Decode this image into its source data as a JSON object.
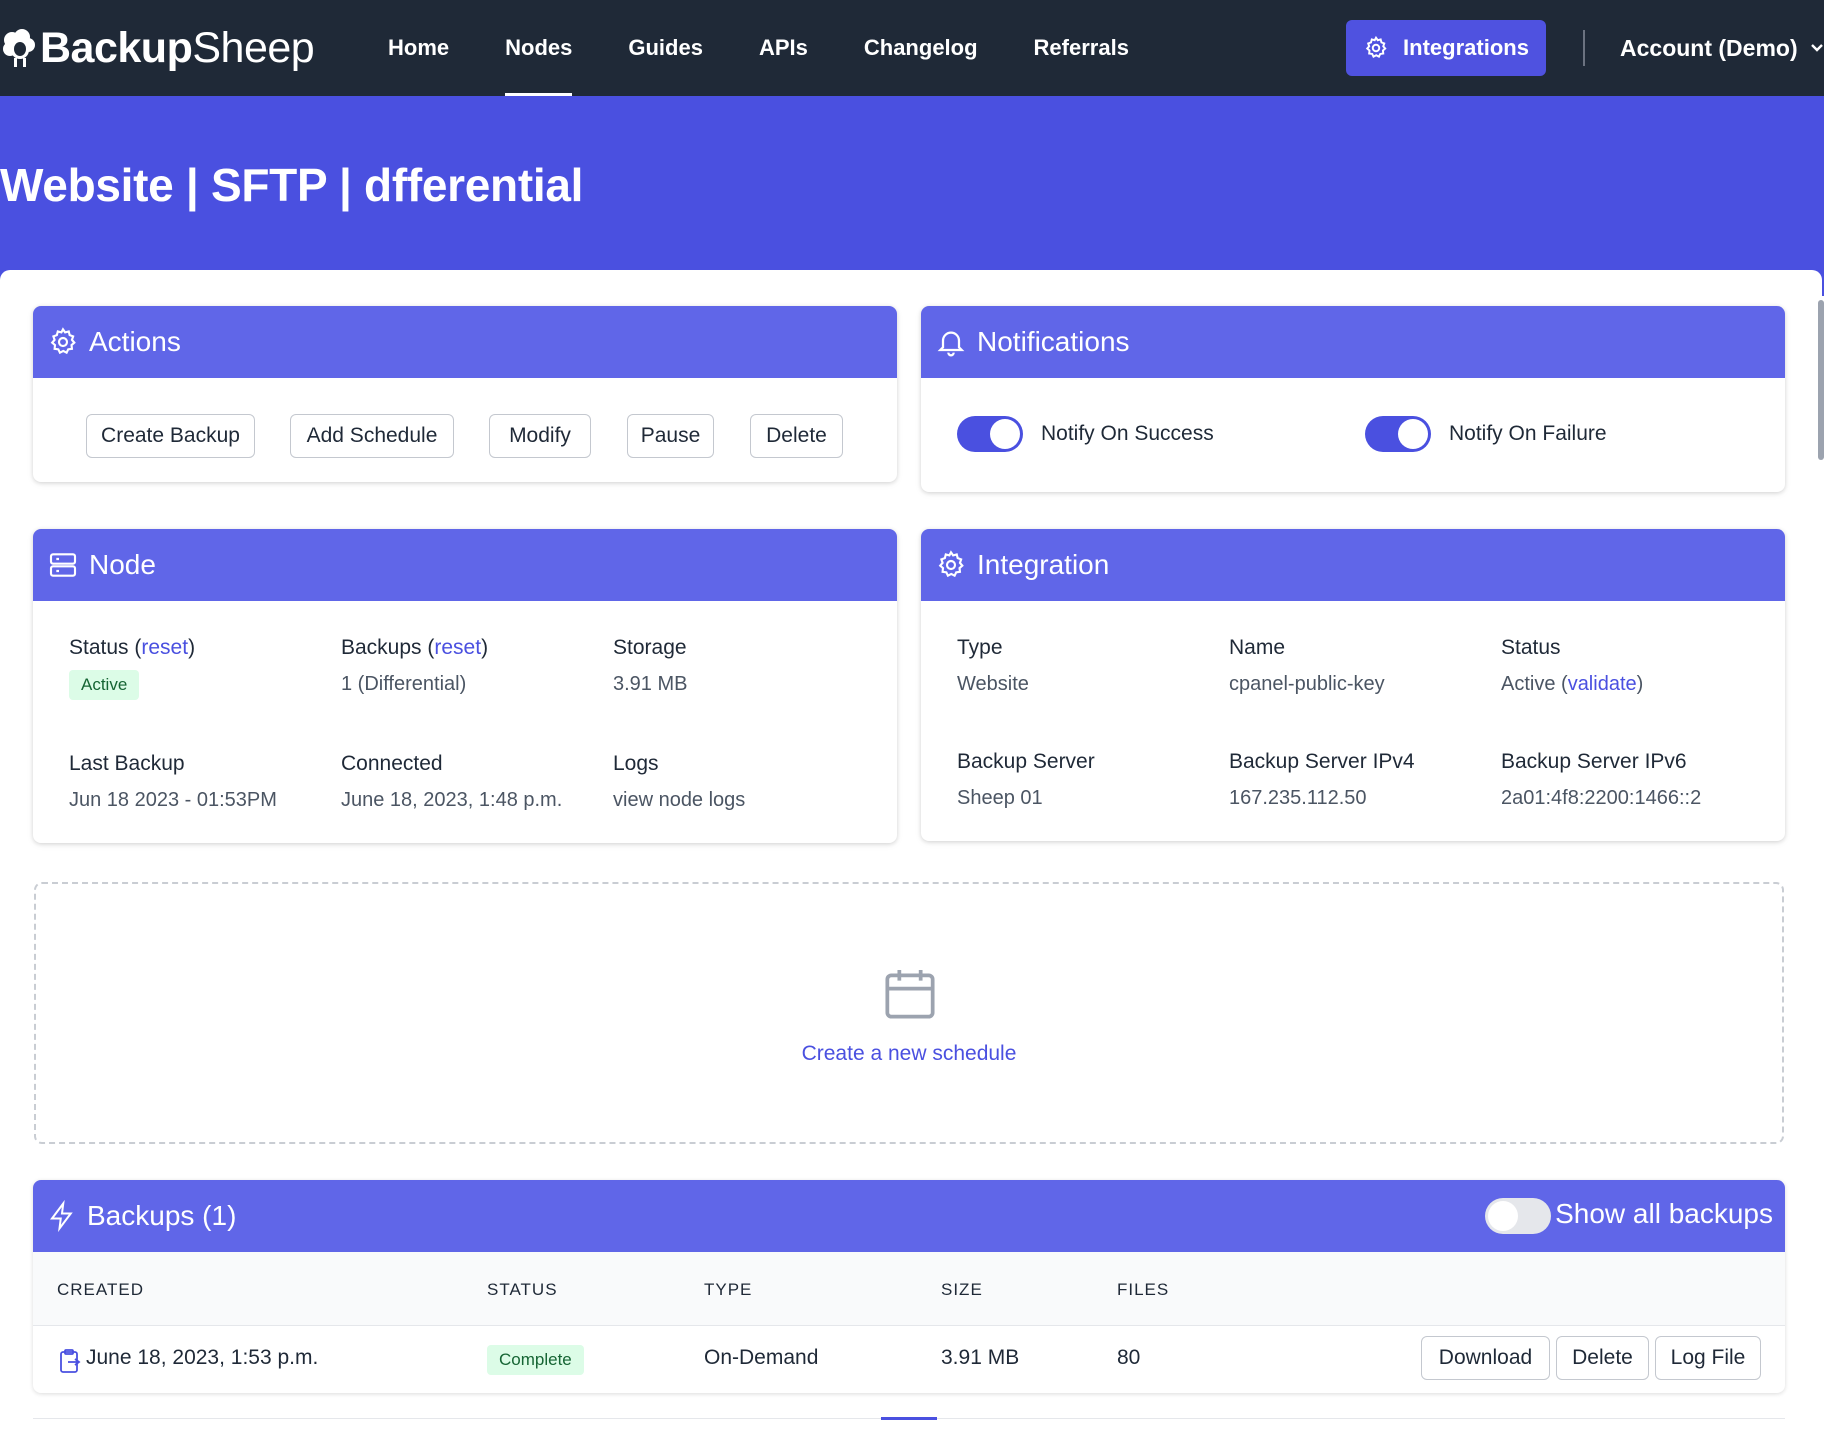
{
  "app": {
    "logo_bold": "Backup",
    "logo_light": "Sheep"
  },
  "nav": {
    "links": [
      "Home",
      "Nodes",
      "Guides",
      "APIs",
      "Changelog",
      "Referrals"
    ],
    "active": "Nodes",
    "integrations_label": "Integrations",
    "account_label": "Account (Demo)"
  },
  "page": {
    "title": "Website | SFTP | dfferential"
  },
  "actions": {
    "title": "Actions",
    "buttons": [
      "Create Backup",
      "Add Schedule",
      "Modify",
      "Pause",
      "Delete"
    ]
  },
  "notifications": {
    "title": "Notifications",
    "success_label": "Notify On Success",
    "success_on": true,
    "failure_label": "Notify On Failure",
    "failure_on": true
  },
  "node": {
    "title": "Node",
    "status_label": "Status",
    "status_reset": "reset",
    "status_value": "Active",
    "backups_label": "Backups",
    "backups_reset": "reset",
    "backups_value": "1 (Differential)",
    "storage_label": "Storage",
    "storage_value": "3.91 MB",
    "last_backup_label": "Last Backup",
    "last_backup_value": "Jun 18 2023 - 01:53PM",
    "connected_label": "Connected",
    "connected_value": "June 18, 2023, 1:48 p.m.",
    "logs_label": "Logs",
    "logs_link": "view node logs"
  },
  "integration": {
    "title": "Integration",
    "type_label": "Type",
    "type_value": "Website",
    "name_label": "Name",
    "name_value": "cpanel-public-key",
    "status_label": "Status",
    "status_value": "Active",
    "status_validate": "validate",
    "server_label": "Backup Server",
    "server_value": "Sheep 01",
    "ipv4_label": "Backup Server IPv4",
    "ipv4_value": "167.235.112.50",
    "ipv6_label": "Backup Server IPv6",
    "ipv6_value": "2a01:4f8:2200:1466::2"
  },
  "schedule": {
    "link": "Create a new schedule"
  },
  "backups": {
    "title": "Backups (1)",
    "show_all_label": "Show all backups",
    "show_all_on": false,
    "columns": [
      "CREATED",
      "STATUS",
      "TYPE",
      "SIZE",
      "FILES"
    ],
    "rows": [
      {
        "created": "June 18, 2023, 1:53 p.m.",
        "status": "Complete",
        "type": "On-Demand",
        "size": "3.91 MB",
        "files": "80",
        "actions": [
          "Download",
          "Delete",
          "Log File"
        ]
      }
    ]
  },
  "colors": {
    "nav_bg": "#1f2937",
    "banner": "#4a50e0",
    "card_header": "#6066e8",
    "link": "#4a50e0",
    "badge_bg": "#dcfce7",
    "badge_text": "#166534"
  }
}
